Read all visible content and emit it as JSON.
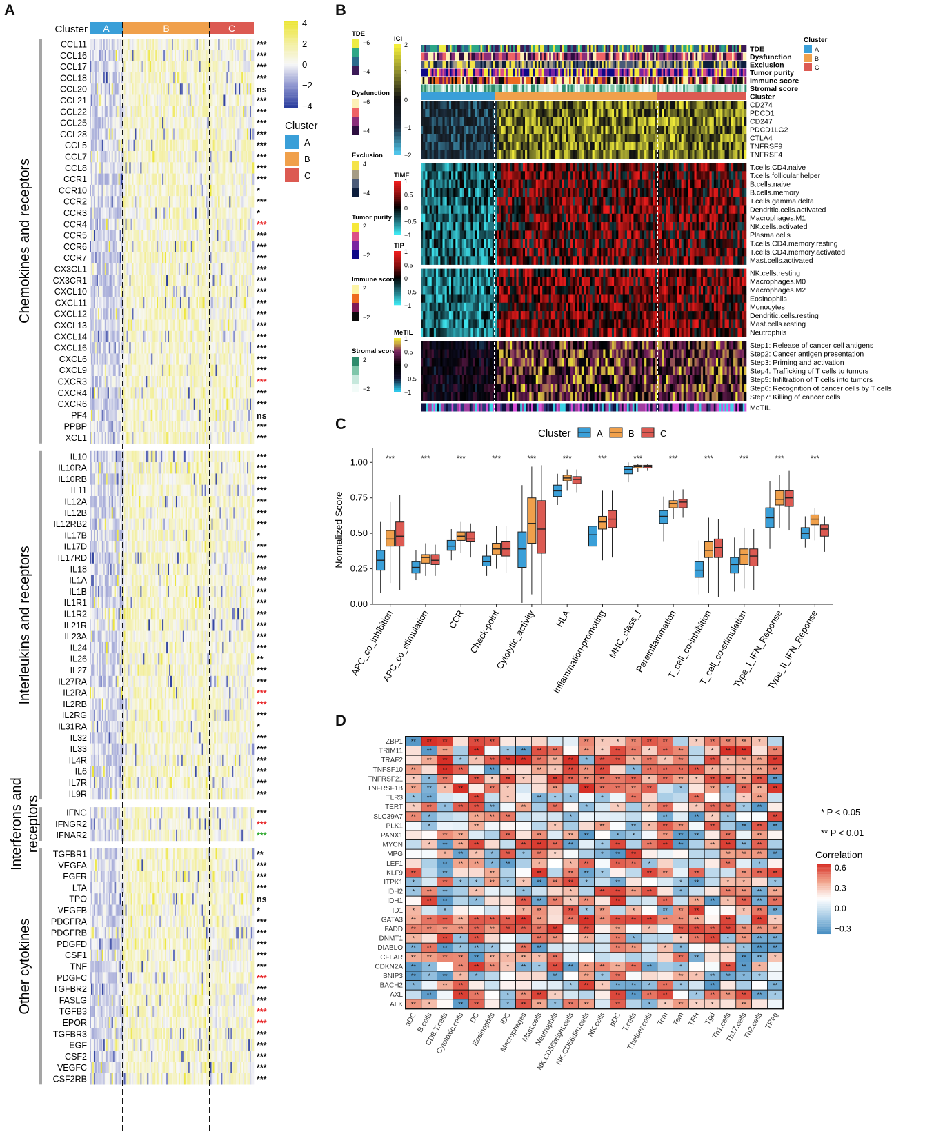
{
  "panel_labels": {
    "a": "A",
    "b": "B",
    "c": "C",
    "d": "D"
  },
  "colors": {
    "cluster_a": "#3a9fd8",
    "cluster_b": "#f0a04b",
    "cluster_c": "#dc5a52",
    "heat_low": "#2c3e9e",
    "heat_mid": "#f7f7f7",
    "heat_high": "#ece531",
    "sig_red": "#e8282a",
    "sig_green": "#33aa33",
    "corr_pos": "#d73027",
    "corr_neg": "#4a8fc2"
  },
  "panel_a": {
    "cluster_header": "Cluster",
    "cluster_names": [
      "A",
      "B",
      "C"
    ],
    "legend_scale_title": "",
    "scale_ticks": [
      "4",
      "2",
      "0",
      "−2",
      "−4"
    ],
    "legend_cluster_title": "Cluster",
    "legend_cluster_items": [
      "A",
      "B",
      "C"
    ],
    "groups": [
      {
        "title": "Chemokines and receptors",
        "genes": [
          "CCL11",
          "CCL16",
          "CCL17",
          "CCL18",
          "CCL20",
          "CCL21",
          "CCL22",
          "CCL25",
          "CCL28",
          "CCL5",
          "CCL7",
          "CCL8",
          "CCR1",
          "CCR10",
          "CCR2",
          "CCR3",
          "CCR4",
          "CCR5",
          "CCR6",
          "CCR7",
          "CX3CL1",
          "CX3CR1",
          "CXCL10",
          "CXCL11",
          "CXCL12",
          "CXCL13",
          "CXCL14",
          "CXCL16",
          "CXCL6",
          "CXCL9",
          "CXCR3",
          "CXCR4",
          "CXCR6",
          "PF4",
          "PPBP",
          "XCL1"
        ],
        "sig": [
          "***",
          "***",
          "***",
          "***",
          "ns",
          "***",
          "***",
          "***",
          "***",
          "***",
          "***",
          "***",
          "***",
          "*",
          "***",
          "*",
          "***",
          "***",
          "***",
          "***",
          "***",
          "***",
          "***",
          "***",
          "***",
          "***",
          "***",
          "***",
          "***",
          "***",
          "***",
          "***",
          "***",
          "ns",
          "***",
          "***"
        ],
        "sig_color": [
          "k",
          "k",
          "k",
          "k",
          "k",
          "k",
          "k",
          "k",
          "k",
          "k",
          "k",
          "k",
          "k",
          "k",
          "k",
          "k",
          "r",
          "k",
          "k",
          "k",
          "k",
          "k",
          "k",
          "k",
          "k",
          "k",
          "k",
          "k",
          "k",
          "k",
          "r",
          "k",
          "k",
          "k",
          "k",
          "k"
        ]
      },
      {
        "title": "Interleukins and receptors",
        "genes": [
          "IL10",
          "IL10RA",
          "IL10RB",
          "IL11",
          "IL12A",
          "IL12B",
          "IL12RB2",
          "IL17B",
          "IL17D",
          "IL17RD",
          "IL18",
          "IL1A",
          "IL1B",
          "IL1R1",
          "IL1R2",
          "IL21R",
          "IL23A",
          "IL24",
          "IL26",
          "IL27",
          "IL27RA",
          "IL2RA",
          "IL2RB",
          "IL2RG",
          "IL31RA",
          "IL32",
          "IL33",
          "IL4R",
          "IL6",
          "IL7R",
          "IL9R"
        ],
        "sig": [
          "***",
          "***",
          "***",
          "***",
          "***",
          "***",
          "***",
          "*",
          "***",
          "***",
          "***",
          "***",
          "***",
          "***",
          "***",
          "***",
          "***",
          "***",
          "**",
          "***",
          "***",
          "***",
          "***",
          "***",
          "*",
          "***",
          "***",
          "***",
          "***",
          "***",
          "***"
        ],
        "sig_color": [
          "k",
          "k",
          "k",
          "k",
          "k",
          "k",
          "k",
          "k",
          "k",
          "k",
          "k",
          "k",
          "k",
          "k",
          "k",
          "k",
          "k",
          "k",
          "k",
          "k",
          "k",
          "r",
          "r",
          "k",
          "k",
          "k",
          "k",
          "k",
          "k",
          "k",
          "k"
        ]
      },
      {
        "title": "Interferons and receptors",
        "genes": [
          "IFNG",
          "IFNGR2",
          "IFNAR2"
        ],
        "sig": [
          "***",
          "***",
          "***"
        ],
        "sig_color": [
          "k",
          "r",
          "g"
        ]
      },
      {
        "title": "Other cytokines",
        "genes": [
          "TGFBR1",
          "VEGFA",
          "EGFR",
          "LTA",
          "TPO",
          "VEGFB",
          "PDGFRA",
          "PDGFRB",
          "PDGFD",
          "CSF1",
          "TNF",
          "PDGFC",
          "TGFBR2",
          "FASLG",
          "TGFB3",
          "EPOR",
          "TGFBR3",
          "EGF",
          "CSF2",
          "VEGFC",
          "CSF2RB"
        ],
        "sig": [
          "**",
          "***",
          "***",
          "***",
          "ns",
          "*",
          "***",
          "***",
          "***",
          "***",
          "***",
          "***",
          "***",
          "***",
          "***",
          "***",
          "***",
          "***",
          "***",
          "***",
          "***"
        ],
        "sig_color": [
          "k",
          "k",
          "k",
          "k",
          "k",
          "k",
          "k",
          "k",
          "k",
          "k",
          "k",
          "r",
          "k",
          "k",
          "r",
          "r",
          "k",
          "k",
          "k",
          "k",
          "k"
        ]
      }
    ]
  },
  "panel_b": {
    "annotation_rows": [
      "TDE",
      "Dysfunction",
      "Exclusion",
      "Tumor purity",
      "Immune score",
      "Stromal score",
      "Cluster"
    ],
    "ici_genes": [
      "CD274",
      "PDCD1",
      "CD247",
      "PDCD1LG2",
      "CTLA4",
      "TNFRSF9",
      "TNFRSF4"
    ],
    "time_cells": [
      "T.cells.CD4.naive",
      "T.cells.follicular.helper",
      "B.cells.naive",
      "B.cells.memory",
      "T.cells.gamma.delta",
      "Dendritic.cells.activated",
      "Macrophages.M1",
      "NK.cells.activated",
      "Plasma.cells",
      "T.cells.CD4.memory.resting",
      "T.cells.CD4.memory.activated",
      "Mast.cells.activated"
    ],
    "tip_cells": [
      "NK.cells.resting",
      "Macrophages.M0",
      "Macrophages.M2",
      "Eosinophils",
      "Monocytes",
      "Dendritic.cells.resting",
      "Mast.cells.resting",
      "Neutrophils"
    ],
    "steps": [
      "Step1: Release of cancer cell antigens",
      "Step2: Cancer antigen presentation",
      "Step3: Priming and activation",
      "Step4: Trafficking of T cells to tumors",
      "Step5: Infiltration of T cells into tumors",
      "Step6: Recognition of cancer cells by T cells",
      "Step7: Killing of cancer cells"
    ],
    "metil_label": "MeTIL",
    "left_legends": [
      {
        "title": "TDE",
        "ticks": [
          "−6",
          "−4"
        ]
      },
      {
        "title": "Dysfunction",
        "ticks": [
          "−6",
          "−4"
        ]
      },
      {
        "title": "Exclusion",
        "ticks": [
          "4",
          "−4"
        ]
      },
      {
        "title": "Tumor purity",
        "ticks": [
          "2",
          "−2"
        ]
      },
      {
        "title": "Immune score",
        "ticks": [
          "2",
          "−2"
        ]
      },
      {
        "title": "Stromal score",
        "ticks": [
          "2",
          "−2"
        ]
      }
    ],
    "scale_legends": [
      {
        "title": "ICI",
        "ticks": [
          "2",
          "1",
          "0",
          "−1",
          "−2"
        ]
      },
      {
        "title": "TIME",
        "ticks": [
          "1",
          "0.5",
          "0",
          "−0.5",
          "−1"
        ]
      },
      {
        "title": "TIP",
        "ticks": [
          "1",
          "0.5",
          "0",
          "−0.5",
          "−1"
        ]
      },
      {
        "title": "MeTIL",
        "ticks": [
          "1",
          "0.5",
          "0",
          "−0.5",
          "−1"
        ]
      }
    ],
    "cluster_legend_title": "Cluster",
    "cluster_legend_items": [
      "A",
      "B",
      "C"
    ]
  },
  "chart_data": {
    "type": "boxplot",
    "title": "",
    "legend_title": "Cluster",
    "legend_items": [
      "A",
      "B",
      "C"
    ],
    "ylabel": "Normalized Score",
    "ylim": [
      0,
      1.05
    ],
    "yticks": [
      "0.00",
      "0.25",
      "0.50",
      "0.75",
      "1.00"
    ],
    "categories": [
      "APC_co_inhibition",
      "APC_co_stimulation",
      "CCR",
      "Check-point",
      "Cytolytic_activity",
      "HLA",
      "Inflammation-promoting",
      "MHC_class_I",
      "Parainflammation",
      "T_cell_co-inhibition",
      "T_cell_co-stimulation",
      "Type_I_IFN_Reponse",
      "Type_II_IFN_Reponse"
    ],
    "significance": [
      "***",
      "***",
      "***",
      "***",
      "***",
      "***",
      "***",
      "***",
      "***",
      "***",
      "***",
      "***",
      "***"
    ],
    "series": [
      {
        "name": "A",
        "boxes": [
          [
            0.08,
            0.24,
            0.31,
            0.38,
            0.58
          ],
          [
            0.17,
            0.22,
            0.26,
            0.3,
            0.38
          ],
          [
            0.31,
            0.38,
            0.41,
            0.45,
            0.53
          ],
          [
            0.2,
            0.27,
            0.3,
            0.34,
            0.42
          ],
          [
            0.01,
            0.26,
            0.39,
            0.51,
            0.84
          ],
          [
            0.7,
            0.76,
            0.8,
            0.84,
            0.92
          ],
          [
            0.28,
            0.41,
            0.49,
            0.55,
            0.74
          ],
          [
            0.86,
            0.92,
            0.95,
            0.97,
            1.0
          ],
          [
            0.44,
            0.57,
            0.62,
            0.66,
            0.76
          ],
          [
            0.07,
            0.19,
            0.24,
            0.3,
            0.45
          ],
          [
            0.09,
            0.22,
            0.28,
            0.33,
            0.47
          ],
          [
            0.39,
            0.54,
            0.61,
            0.68,
            0.87
          ],
          [
            0.4,
            0.46,
            0.5,
            0.54,
            0.62
          ]
        ]
      },
      {
        "name": "B",
        "boxes": [
          [
            0.15,
            0.41,
            0.46,
            0.52,
            0.72
          ],
          [
            0.2,
            0.29,
            0.33,
            0.35,
            0.43
          ],
          [
            0.36,
            0.45,
            0.48,
            0.51,
            0.58
          ],
          [
            0.25,
            0.35,
            0.39,
            0.43,
            0.55
          ],
          [
            0.07,
            0.43,
            0.57,
            0.75,
            0.97
          ],
          [
            0.8,
            0.87,
            0.89,
            0.91,
            0.95
          ],
          [
            0.31,
            0.53,
            0.58,
            0.62,
            0.8
          ],
          [
            0.93,
            0.96,
            0.97,
            0.98,
            0.99
          ],
          [
            0.6,
            0.68,
            0.71,
            0.73,
            0.8
          ],
          [
            0.08,
            0.33,
            0.38,
            0.44,
            0.61
          ],
          [
            0.11,
            0.28,
            0.35,
            0.39,
            0.54
          ],
          [
            0.54,
            0.7,
            0.74,
            0.8,
            0.91
          ],
          [
            0.45,
            0.56,
            0.6,
            0.63,
            0.68
          ]
        ]
      },
      {
        "name": "C",
        "boxes": [
          [
            0.1,
            0.41,
            0.48,
            0.58,
            0.77
          ],
          [
            0.2,
            0.28,
            0.31,
            0.35,
            0.42
          ],
          [
            0.33,
            0.44,
            0.46,
            0.51,
            0.57
          ],
          [
            0.22,
            0.34,
            0.39,
            0.44,
            0.55
          ],
          [
            0.0,
            0.36,
            0.53,
            0.73,
            0.98
          ],
          [
            0.79,
            0.85,
            0.88,
            0.9,
            0.95
          ],
          [
            0.33,
            0.54,
            0.6,
            0.66,
            0.8
          ],
          [
            0.94,
            0.96,
            0.97,
            0.98,
            0.99
          ],
          [
            0.61,
            0.68,
            0.72,
            0.74,
            0.81
          ],
          [
            0.05,
            0.33,
            0.4,
            0.46,
            0.6
          ],
          [
            0.1,
            0.27,
            0.34,
            0.39,
            0.53
          ],
          [
            0.52,
            0.69,
            0.75,
            0.8,
            0.94
          ],
          [
            0.37,
            0.48,
            0.53,
            0.56,
            0.62
          ]
        ]
      }
    ]
  },
  "panel_d": {
    "genes": [
      "ZBP1",
      "TRIM11",
      "TRAF2",
      "TNFSF10",
      "TNFRSF21",
      "TNFRSF1B",
      "TLR3",
      "TERT",
      "SLC39A7",
      "PLK1",
      "PANX1",
      "MYCN",
      "MPG",
      "LEF1",
      "KLF9",
      "ITPK1",
      "IDH2",
      "IDH1",
      "ID1",
      "GATA3",
      "FADD",
      "DNMT1",
      "DIABLO",
      "CFLAR",
      "CDKN2A",
      "BNIP3",
      "BACH2",
      "AXL",
      "ALK"
    ],
    "cells": [
      "aDC",
      "B.cells",
      "CD8.T.cells",
      "Cytotoxic.cells",
      "DC",
      "Eosinophils",
      "iDC",
      "Macrophages",
      "Mast.cells",
      "Neutrophils",
      "NK.CD56bright.cells",
      "NK.CD56dim.cells",
      "NK.cells",
      "pDC",
      "T.cells",
      "T.helper.cells",
      "Tcm",
      "Tem",
      "TFH",
      "Tgd",
      "Th1.cells",
      "Th17.cells",
      "Th2.cells",
      "TReg"
    ],
    "pvalue_notes": [
      "* P < 0.05",
      "** P < 0.01"
    ],
    "legend_title": "Correlation",
    "legend_ticks": [
      "0.6",
      "0.3",
      "0.0",
      "−0.3"
    ]
  }
}
